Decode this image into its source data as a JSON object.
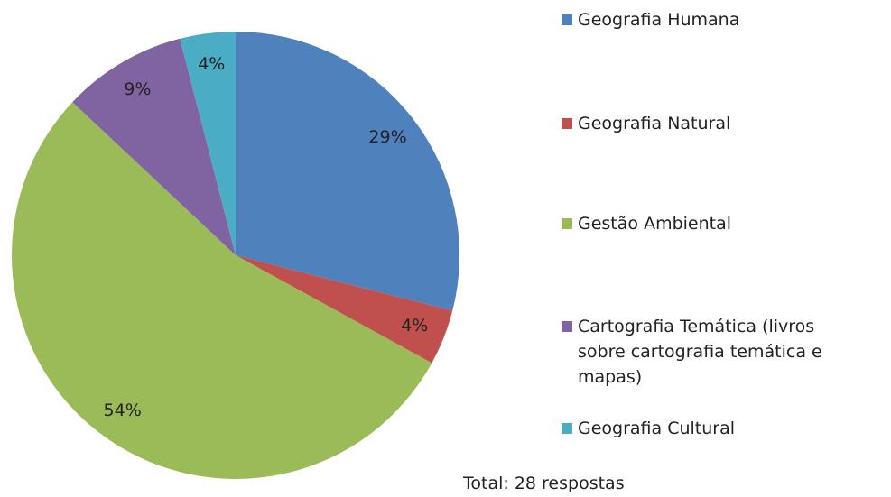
{
  "chart_data": {
    "type": "pie",
    "categories": [
      "Geografia Humana",
      "Geografia Natural",
      "Gestão Ambiental",
      "Cartografia Temática (livros sobre cartografia temática e mapas)",
      "Geografia Cultural"
    ],
    "values": [
      29,
      4,
      54,
      9,
      4
    ],
    "value_labels": [
      "29%",
      "4%",
      "54%",
      "9%",
      "4%"
    ],
    "colors": [
      "#4f81bd",
      "#c0504d",
      "#9bbb59",
      "#8064a2",
      "#4bacc6"
    ],
    "legend": "right",
    "annotation": "Total: 28 respostas"
  }
}
